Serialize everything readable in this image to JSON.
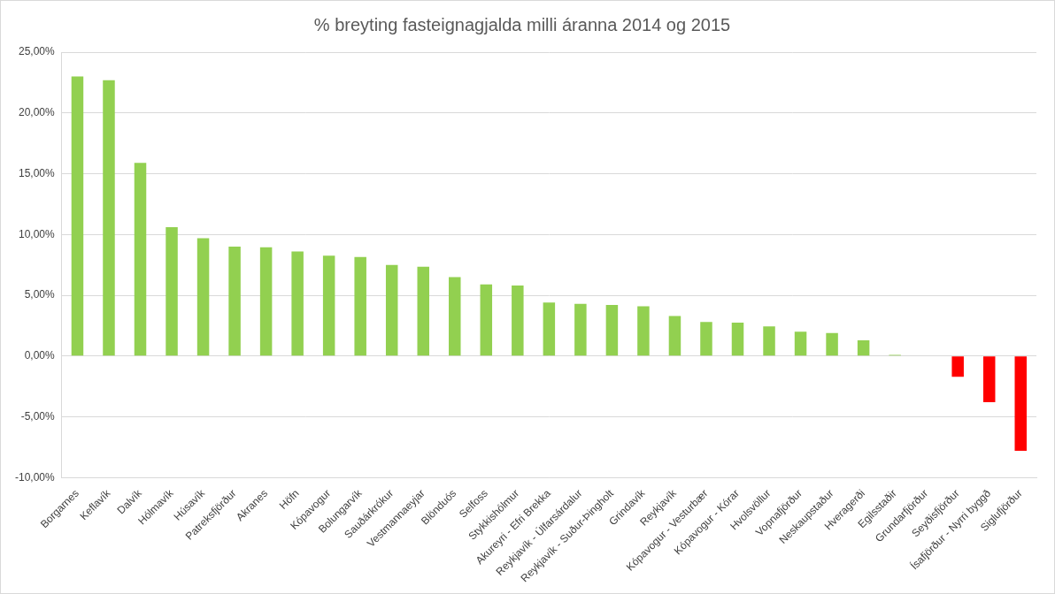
{
  "chart_data": {
    "type": "bar",
    "title": "% breyting fasteignagjalda milli áranna 2014 og 2015",
    "categories": [
      "Borgarnes",
      "Keflavík",
      "Dalvík",
      "Hólmavík",
      "Húsavík",
      "Patreksfjörður",
      "Akranes",
      "Höfn",
      "Kópavogur",
      "Bolungarvík",
      "Sauðárkrókur",
      "Vestmannaeyjar",
      "Blönduós",
      "Selfoss",
      "Stykkishólmur",
      "Akureyri - Efri Brekka",
      "Reykjavík - Úlfarsárdalur",
      "Reykjavík - Suður-Þingholt",
      "Grindavík",
      "Reykjavík",
      "Kópavogur - Vesturbær",
      "Kópavogur - Kórar",
      "Hvolsvöllur",
      "Vopnafjörður",
      "Neskaupstaður",
      "Hveragerði",
      "Egilsstaðir",
      "Grundarfjörður",
      "Seyðisfjörður",
      "Ísafjörður - Nyrri byggð",
      "Siglufjörður"
    ],
    "values": [
      23.0,
      22.7,
      15.9,
      10.6,
      9.7,
      9.0,
      8.95,
      8.6,
      8.25,
      8.15,
      7.5,
      7.35,
      6.5,
      5.9,
      5.8,
      4.4,
      4.3,
      4.2,
      4.1,
      3.3,
      2.8,
      2.75,
      2.45,
      2.0,
      1.9,
      1.3,
      0.1,
      0.0,
      -1.7,
      -3.8,
      -7.8
    ],
    "colors": [
      "#92d050",
      "#92d050",
      "#92d050",
      "#92d050",
      "#92d050",
      "#92d050",
      "#92d050",
      "#92d050",
      "#92d050",
      "#92d050",
      "#92d050",
      "#92d050",
      "#92d050",
      "#92d050",
      "#92d050",
      "#92d050",
      "#92d050",
      "#92d050",
      "#92d050",
      "#92d050",
      "#92d050",
      "#92d050",
      "#92d050",
      "#92d050",
      "#92d050",
      "#92d050",
      "#92d050",
      "#92d050",
      "#ff0000",
      "#ff0000",
      "#ff0000"
    ],
    "ylim": [
      -10,
      25
    ],
    "yticks": [
      {
        "value": -10,
        "label": "-10,00%"
      },
      {
        "value": -5,
        "label": "-5,00%"
      },
      {
        "value": 0,
        "label": "0,00%"
      },
      {
        "value": 5,
        "label": "5,00%"
      },
      {
        "value": 10,
        "label": "10,00%"
      },
      {
        "value": 15,
        "label": "15,00%"
      },
      {
        "value": 20,
        "label": "20,00%"
      },
      {
        "value": 25,
        "label": "25,00%"
      }
    ],
    "grid": true
  }
}
